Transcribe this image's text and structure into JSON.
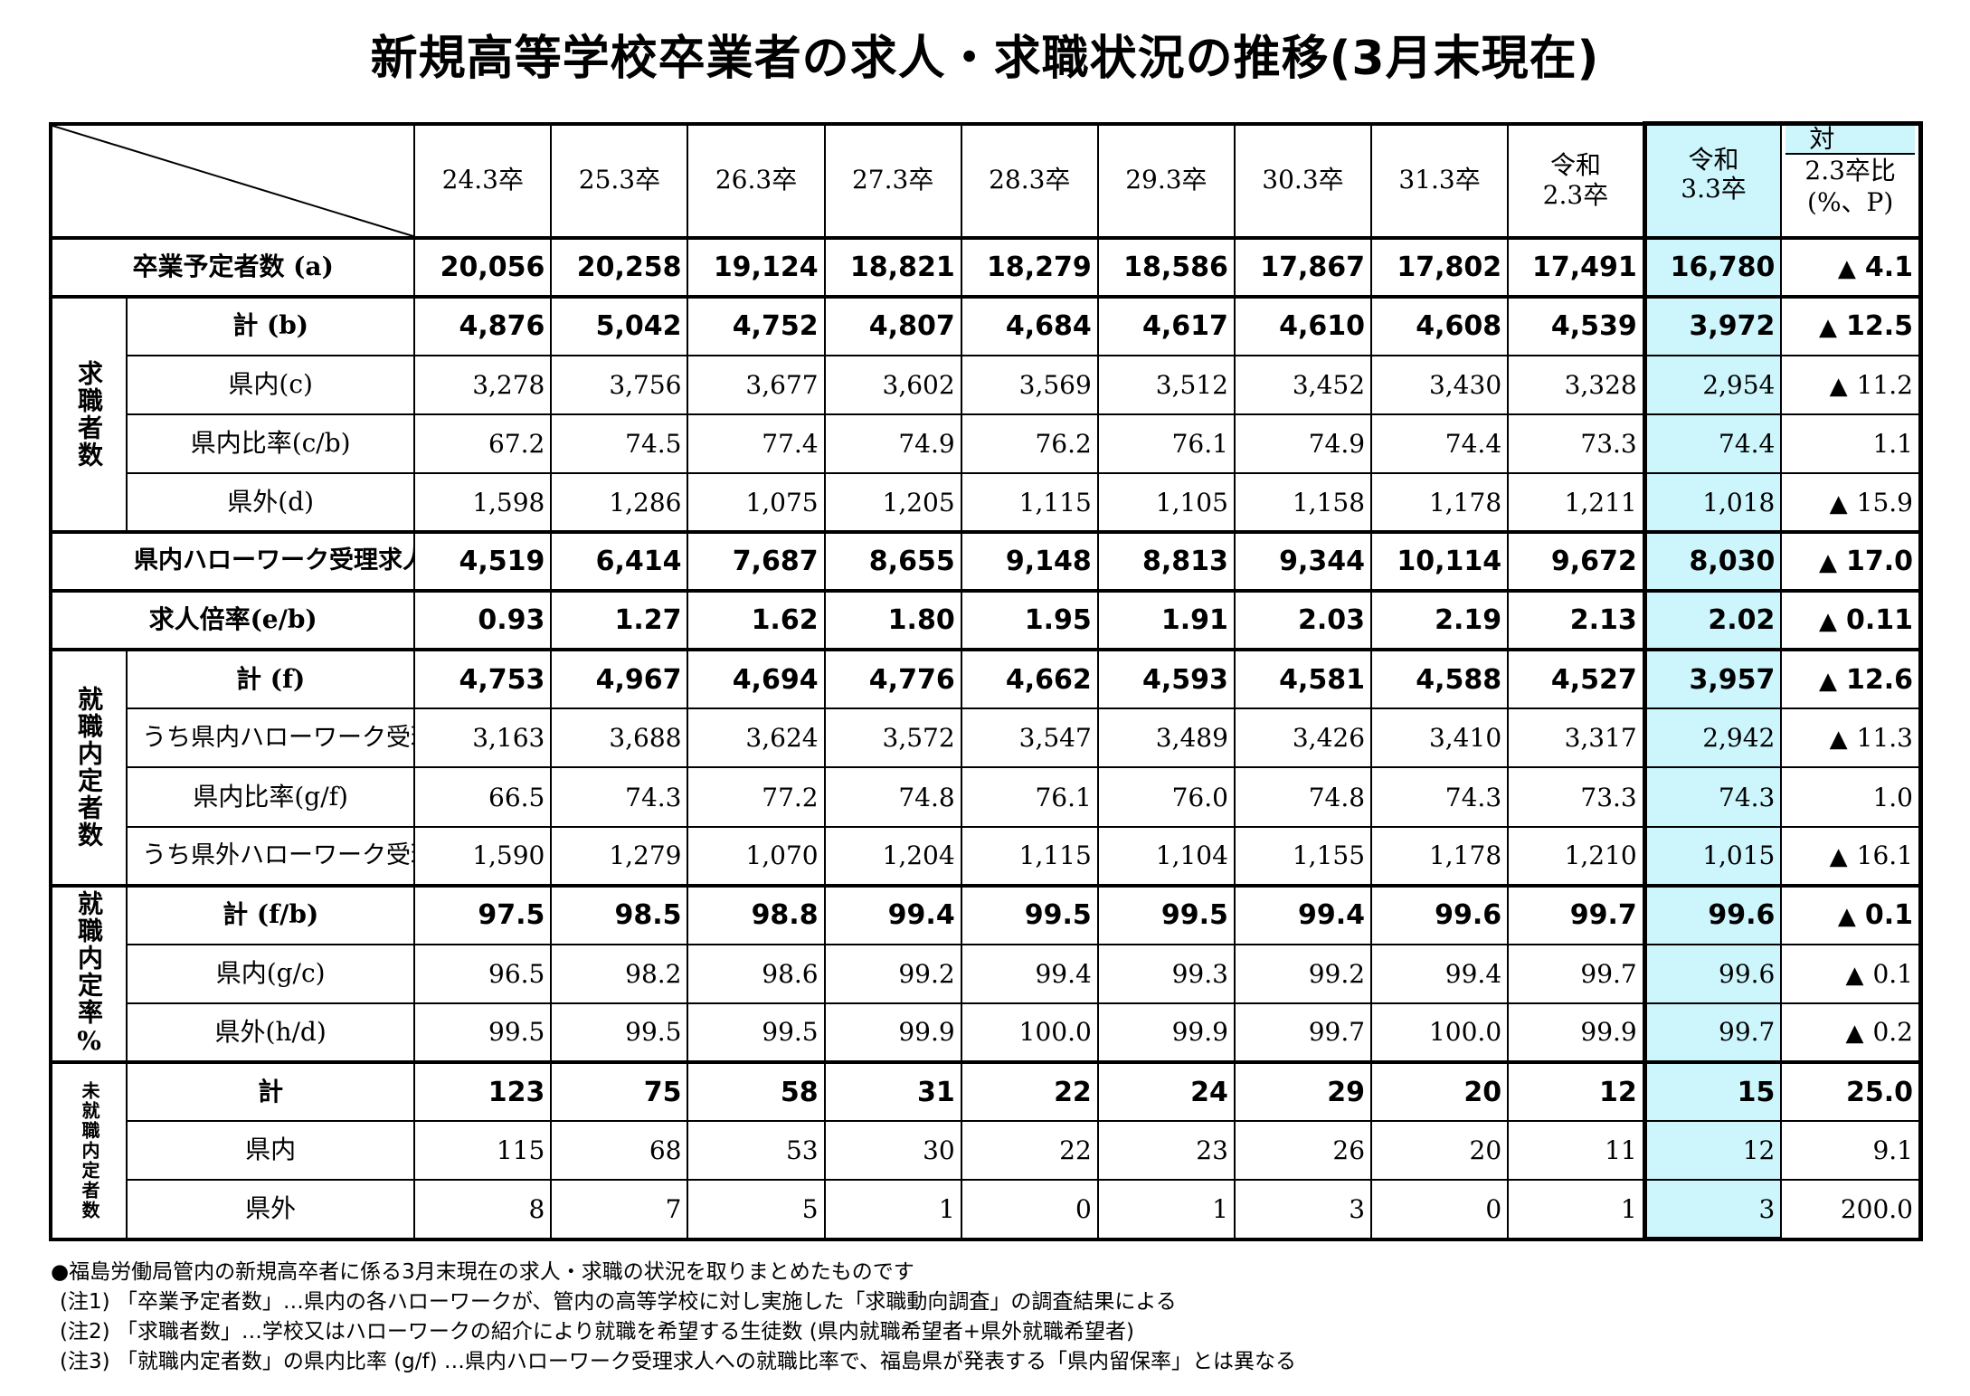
{
  "title": "新規高等学校卒業者の求人・求職状況の推移(3月末現在)",
  "header": {
    "columns": [
      {
        "line1": "24.3卒",
        "line2": ""
      },
      {
        "line1": "25.3卒",
        "line2": ""
      },
      {
        "line1": "26.3卒",
        "line2": ""
      },
      {
        "line1": "27.3卒",
        "line2": ""
      },
      {
        "line1": "28.3卒",
        "line2": ""
      },
      {
        "line1": "29.3卒",
        "line2": ""
      },
      {
        "line1": "30.3卒",
        "line2": ""
      },
      {
        "line1": "31.3卒",
        "line2": ""
      },
      {
        "line1": "令和",
        "line2": "2.3卒"
      },
      {
        "line1": "令和",
        "line2": "3.3卒"
      }
    ],
    "comparison": {
      "line1": "対",
      "line2": "2.3卒比",
      "line3": "(%、P)"
    }
  },
  "groups": {
    "seekers": "求職者数",
    "placed": "就職内定者数",
    "rate": "就職内定率%",
    "unplaced": "未就職内定者数"
  },
  "rows": [
    {
      "label": "卒業予定者数 (a)",
      "values": [
        "20,056",
        "20,258",
        "19,124",
        "18,821",
        "18,279",
        "18,586",
        "17,867",
        "17,802",
        "17,491",
        "16,780"
      ],
      "cmp_tri": "▲",
      "cmp": "4.1"
    },
    {
      "label": "計 (b)",
      "values": [
        "4,876",
        "5,042",
        "4,752",
        "4,807",
        "4,684",
        "4,617",
        "4,610",
        "4,608",
        "4,539",
        "3,972"
      ],
      "cmp_tri": "▲",
      "cmp": "12.5"
    },
    {
      "label": "県内(c)",
      "values": [
        "3,278",
        "3,756",
        "3,677",
        "3,602",
        "3,569",
        "3,512",
        "3,452",
        "3,430",
        "3,328",
        "2,954"
      ],
      "cmp_tri": "▲",
      "cmp": "11.2"
    },
    {
      "label": "県内比率(c/b)",
      "values": [
        "67.2",
        "74.5",
        "77.4",
        "74.9",
        "76.2",
        "76.1",
        "74.9",
        "74.4",
        "73.3",
        "74.4"
      ],
      "cmp_tri": "",
      "cmp": "1.1"
    },
    {
      "label": "県外(d)",
      "values": [
        "1,598",
        "1,286",
        "1,075",
        "1,205",
        "1,115",
        "1,105",
        "1,158",
        "1,178",
        "1,211",
        "1,018"
      ],
      "cmp_tri": "▲",
      "cmp": "15.9"
    },
    {
      "label": "県内ハローワーク受理求人数 (e)",
      "values": [
        "4,519",
        "6,414",
        "7,687",
        "8,655",
        "9,148",
        "8,813",
        "9,344",
        "10,114",
        "9,672",
        "8,030"
      ],
      "cmp_tri": "▲",
      "cmp": "17.0"
    },
    {
      "label": "求人倍率(e/b)",
      "values": [
        "0.93",
        "1.27",
        "1.62",
        "1.80",
        "1.95",
        "1.91",
        "2.03",
        "2.19",
        "2.13",
        "2.02"
      ],
      "cmp_tri": "▲",
      "cmp": "0.11"
    },
    {
      "label": "計 (f)",
      "values": [
        "4,753",
        "4,967",
        "4,694",
        "4,776",
        "4,662",
        "4,593",
        "4,581",
        "4,588",
        "4,527",
        "3,957"
      ],
      "cmp_tri": "▲",
      "cmp": "12.6"
    },
    {
      "label": "うち県内ハローワーク受理求人への就職(g)",
      "values": [
        "3,163",
        "3,688",
        "3,624",
        "3,572",
        "3,547",
        "3,489",
        "3,426",
        "3,410",
        "3,317",
        "2,942"
      ],
      "cmp_tri": "▲",
      "cmp": "11.3"
    },
    {
      "label": "県内比率(g/f)",
      "values": [
        "66.5",
        "74.3",
        "77.2",
        "74.8",
        "76.1",
        "76.0",
        "74.8",
        "74.3",
        "73.3",
        "74.3"
      ],
      "cmp_tri": "",
      "cmp": "1.0"
    },
    {
      "label": "うち県外ハローワーク受理求人への就職(h)",
      "values": [
        "1,590",
        "1,279",
        "1,070",
        "1,204",
        "1,115",
        "1,104",
        "1,155",
        "1,178",
        "1,210",
        "1,015"
      ],
      "cmp_tri": "▲",
      "cmp": "16.1"
    },
    {
      "label": "計 (f/b)",
      "values": [
        "97.5",
        "98.5",
        "98.8",
        "99.4",
        "99.5",
        "99.5",
        "99.4",
        "99.6",
        "99.7",
        "99.6"
      ],
      "cmp_tri": "▲",
      "cmp": "0.1"
    },
    {
      "label": "県内(g/c)",
      "values": [
        "96.5",
        "98.2",
        "98.6",
        "99.2",
        "99.4",
        "99.3",
        "99.2",
        "99.4",
        "99.7",
        "99.6"
      ],
      "cmp_tri": "▲",
      "cmp": "0.1"
    },
    {
      "label": "県外(h/d)",
      "values": [
        "99.5",
        "99.5",
        "99.5",
        "99.9",
        "100.0",
        "99.9",
        "99.7",
        "100.0",
        "99.9",
        "99.7"
      ],
      "cmp_tri": "▲",
      "cmp": "0.2"
    },
    {
      "label": "計",
      "values": [
        "123",
        "75",
        "58",
        "31",
        "22",
        "24",
        "29",
        "20",
        "12",
        "15"
      ],
      "cmp_tri": "",
      "cmp": "25.0"
    },
    {
      "label": "県内",
      "values": [
        "115",
        "68",
        "53",
        "30",
        "22",
        "23",
        "26",
        "20",
        "11",
        "12"
      ],
      "cmp_tri": "",
      "cmp": "9.1"
    },
    {
      "label": "県外",
      "values": [
        "8",
        "7",
        "5",
        "1",
        "0",
        "1",
        "3",
        "0",
        "1",
        "3"
      ],
      "cmp_tri": "",
      "cmp": "200.0"
    }
  ],
  "notes": [
    "●福島労働局管内の新規高卒者に係る3月末現在の求人・求職の状況を取りまとめたものです",
    "(注1) 「卒業予定者数」…県内の各ハローワークが、管内の高等学校に対し実施した「求職動向調査」の調査結果による",
    "(注2) 「求職者数」…学校又はハローワークの紹介により就職を希望する生徒数 (県内就職希望者+県外就職希望者)",
    "(注3) 「就職内定者数」の県内比率 (g/f) …県内ハローワーク受理求人への就職比率で、福島県が発表する「県内留保率」とは異なる"
  ]
}
